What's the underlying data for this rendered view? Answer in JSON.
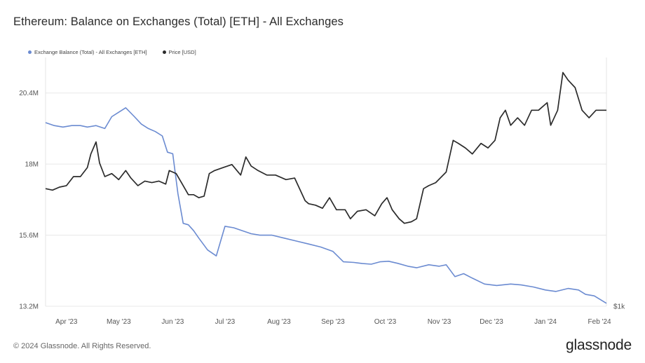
{
  "chart_data": {
    "type": "line",
    "title": "Ethereum: Balance on Exchanges (Total) [ETH] - All Exchanges",
    "x_tick_labels": [
      "Apr '23",
      "May '23",
      "Jun '23",
      "Jul '23",
      "Aug '23",
      "Sep '23",
      "Oct '23",
      "Nov '23",
      "Dec '23",
      "Jan '24",
      "Feb '24"
    ],
    "x_range": [
      "2023-03-20",
      "2024-02-05"
    ],
    "y_left": {
      "ticks": [
        "13.2M",
        "15.6M",
        "18M",
        "20.4M"
      ],
      "tick_values": [
        13.2,
        15.6,
        18.0,
        20.4
      ],
      "range": [
        13.2,
        21.6
      ],
      "unit": "M ETH"
    },
    "y_right": {
      "ticks": [
        "$1k"
      ],
      "tick_values": [
        1000
      ],
      "range": [
        1000,
        2650
      ],
      "unit": "USD"
    },
    "grid": true,
    "legend_placement": "top-left",
    "series": [
      {
        "name": "Exchange Balance (Total) - All Exchanges [ETH]",
        "color": "#6b8bd1",
        "axis": "left",
        "x": [
          "2023-03-20",
          "2023-03-25",
          "2023-03-30",
          "2023-04-04",
          "2023-04-09",
          "2023-04-13",
          "2023-04-18",
          "2023-04-23",
          "2023-04-27",
          "2023-05-01",
          "2023-05-05",
          "2023-05-10",
          "2023-05-14",
          "2023-05-18",
          "2023-05-22",
          "2023-05-26",
          "2023-05-29",
          "2023-06-01",
          "2023-06-04",
          "2023-06-07",
          "2023-06-10",
          "2023-06-13",
          "2023-06-16",
          "2023-06-21",
          "2023-06-26",
          "2023-07-01",
          "2023-07-06",
          "2023-07-11",
          "2023-07-16",
          "2023-07-21",
          "2023-07-28",
          "2023-08-04",
          "2023-08-11",
          "2023-08-18",
          "2023-08-25",
          "2023-09-01",
          "2023-09-07",
          "2023-09-13",
          "2023-09-18",
          "2023-09-23",
          "2023-09-28",
          "2023-10-03",
          "2023-10-08",
          "2023-10-14",
          "2023-10-19",
          "2023-10-26",
          "2023-11-01",
          "2023-11-05",
          "2023-11-10",
          "2023-11-15",
          "2023-11-20",
          "2023-11-27",
          "2023-12-04",
          "2023-12-12",
          "2023-12-18",
          "2023-12-25",
          "2024-01-01",
          "2024-01-07",
          "2024-01-14",
          "2024-01-20",
          "2024-01-24",
          "2024-01-29",
          "2024-02-05"
        ],
        "values": [
          19.4,
          19.3,
          19.25,
          19.3,
          19.3,
          19.25,
          19.3,
          19.2,
          19.6,
          19.75,
          19.9,
          19.6,
          19.35,
          19.2,
          19.1,
          18.95,
          18.4,
          18.35,
          17.0,
          16.0,
          15.95,
          15.75,
          15.5,
          15.1,
          14.9,
          15.9,
          15.85,
          15.75,
          15.65,
          15.6,
          15.6,
          15.5,
          15.4,
          15.3,
          15.2,
          15.05,
          14.7,
          14.68,
          14.64,
          14.62,
          14.7,
          14.72,
          14.65,
          14.55,
          14.5,
          14.6,
          14.55,
          14.6,
          14.2,
          14.3,
          14.15,
          13.95,
          13.9,
          13.95,
          13.92,
          13.85,
          13.75,
          13.7,
          13.8,
          13.75,
          13.6,
          13.55,
          13.3
        ]
      },
      {
        "name": "Price [USD]",
        "color": "#2b2b2b",
        "axis": "right",
        "x": [
          "2023-03-20",
          "2023-03-24",
          "2023-03-28",
          "2023-04-01",
          "2023-04-05",
          "2023-04-09",
          "2023-04-13",
          "2023-04-15",
          "2023-04-18",
          "2023-04-20",
          "2023-04-23",
          "2023-04-27",
          "2023-05-01",
          "2023-05-05",
          "2023-05-08",
          "2023-05-12",
          "2023-05-16",
          "2023-05-20",
          "2023-05-24",
          "2023-05-28",
          "2023-05-30",
          "2023-06-03",
          "2023-06-06",
          "2023-06-10",
          "2023-06-13",
          "2023-06-16",
          "2023-06-19",
          "2023-06-22",
          "2023-06-25",
          "2023-06-30",
          "2023-07-05",
          "2023-07-10",
          "2023-07-13",
          "2023-07-16",
          "2023-07-20",
          "2023-07-25",
          "2023-07-30",
          "2023-08-05",
          "2023-08-10",
          "2023-08-16",
          "2023-08-18",
          "2023-08-22",
          "2023-08-26",
          "2023-08-30",
          "2023-09-03",
          "2023-09-08",
          "2023-09-11",
          "2023-09-15",
          "2023-09-20",
          "2023-09-25",
          "2023-09-29",
          "2023-10-02",
          "2023-10-05",
          "2023-10-09",
          "2023-10-12",
          "2023-10-16",
          "2023-10-19",
          "2023-10-23",
          "2023-10-26",
          "2023-10-30",
          "2023-11-05",
          "2023-11-09",
          "2023-11-12",
          "2023-11-16",
          "2023-11-20",
          "2023-11-25",
          "2023-11-29",
          "2023-12-03",
          "2023-12-06",
          "2023-12-09",
          "2023-12-12",
          "2023-12-16",
          "2023-12-20",
          "2023-12-24",
          "2023-12-28",
          "2024-01-02",
          "2024-01-04",
          "2024-01-08",
          "2024-01-11",
          "2024-01-14",
          "2024-01-18",
          "2024-01-22",
          "2024-01-26",
          "2024-01-30",
          "2024-02-03",
          "2024-02-05"
        ],
        "values": [
          1780,
          1770,
          1790,
          1800,
          1860,
          1860,
          1920,
          2010,
          2090,
          1950,
          1860,
          1880,
          1840,
          1900,
          1850,
          1800,
          1830,
          1820,
          1830,
          1810,
          1900,
          1880,
          1820,
          1740,
          1740,
          1720,
          1730,
          1880,
          1900,
          1920,
          1940,
          1870,
          1990,
          1930,
          1900,
          1870,
          1870,
          1840,
          1850,
          1700,
          1680,
          1670,
          1650,
          1720,
          1640,
          1640,
          1580,
          1630,
          1640,
          1600,
          1680,
          1720,
          1640,
          1580,
          1550,
          1560,
          1580,
          1780,
          1800,
          1820,
          1890,
          2100,
          2080,
          2050,
          2010,
          2080,
          2050,
          2100,
          2250,
          2300,
          2200,
          2250,
          2200,
          2300,
          2300,
          2350,
          2200,
          2300,
          2550,
          2500,
          2450,
          2300,
          2250,
          2300,
          2300,
          2300
        ]
      }
    ]
  },
  "footer": {
    "copyright": "© 2024 Glassnode. All Rights Reserved.",
    "brand": "glassnode"
  }
}
